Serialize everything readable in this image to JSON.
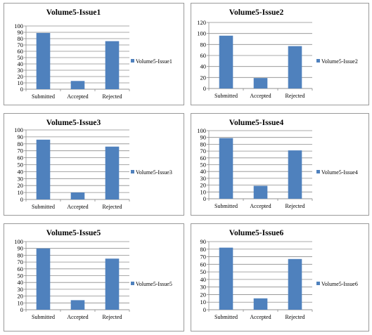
{
  "colors": {
    "bar": "#4f81bd",
    "grid": "#8c8c8c",
    "axis": "#8c8c8c"
  },
  "chart_data": [
    {
      "type": "bar",
      "title": "Volume5-Issue1",
      "categories": [
        "Submitted",
        "Accepted",
        "Rejected"
      ],
      "series": [
        {
          "name": "Volume5-Issue1",
          "values": [
            89,
            13,
            76
          ]
        }
      ],
      "ylim": [
        0,
        100
      ],
      "yticks": [
        0,
        10,
        20,
        30,
        40,
        50,
        60,
        70,
        80,
        90,
        100
      ],
      "grid": true,
      "legend": "right"
    },
    {
      "type": "bar",
      "title": "Volume5-Issue2",
      "categories": [
        "Submitted",
        "Accepted",
        "Rejected"
      ],
      "series": [
        {
          "name": "Volume5-Issue2",
          "values": [
            96,
            19,
            77
          ]
        }
      ],
      "ylim": [
        0,
        120
      ],
      "yticks": [
        0,
        20,
        40,
        60,
        80,
        100,
        120
      ],
      "grid": true,
      "legend": "right"
    },
    {
      "type": "bar",
      "title": "Volume5-Issue3",
      "categories": [
        "Submitted",
        "Accepted",
        "Rejected"
      ],
      "series": [
        {
          "name": "Volume5-Issue3",
          "values": [
            86,
            10,
            76
          ]
        }
      ],
      "ylim": [
        0,
        100
      ],
      "yticks": [
        0,
        10,
        20,
        30,
        40,
        50,
        60,
        70,
        80,
        90,
        100
      ],
      "grid": true,
      "legend": "right"
    },
    {
      "type": "bar",
      "title": "Volume5-Issue4",
      "categories": [
        "Submitted",
        "Accepted",
        "Rejected"
      ],
      "series": [
        {
          "name": "Volume5-Issue4",
          "values": [
            89,
            19,
            71
          ]
        }
      ],
      "ylim": [
        0,
        100
      ],
      "yticks": [
        0,
        10,
        20,
        30,
        40,
        50,
        60,
        70,
        80,
        90,
        100
      ],
      "grid": true,
      "legend": "right"
    },
    {
      "type": "bar",
      "title": "Volume5-Issue5",
      "categories": [
        "Submitted",
        "Accepted",
        "Rejected"
      ],
      "series": [
        {
          "name": "Volume5-Issue5",
          "values": [
            90,
            14,
            75
          ]
        }
      ],
      "ylim": [
        0,
        100
      ],
      "yticks": [
        0,
        10,
        20,
        30,
        40,
        50,
        60,
        70,
        80,
        90,
        100
      ],
      "grid": true,
      "legend": "right"
    },
    {
      "type": "bar",
      "title": "Volume5-Issue6",
      "categories": [
        "Submitted",
        "Accepted",
        "Rejected"
      ],
      "series": [
        {
          "name": "Volume5-Issue6",
          "values": [
            82,
            15,
            67
          ]
        }
      ],
      "ylim": [
        0,
        90
      ],
      "yticks": [
        0,
        10,
        20,
        30,
        40,
        50,
        60,
        70,
        80,
        90
      ],
      "grid": true,
      "legend": "right"
    }
  ]
}
